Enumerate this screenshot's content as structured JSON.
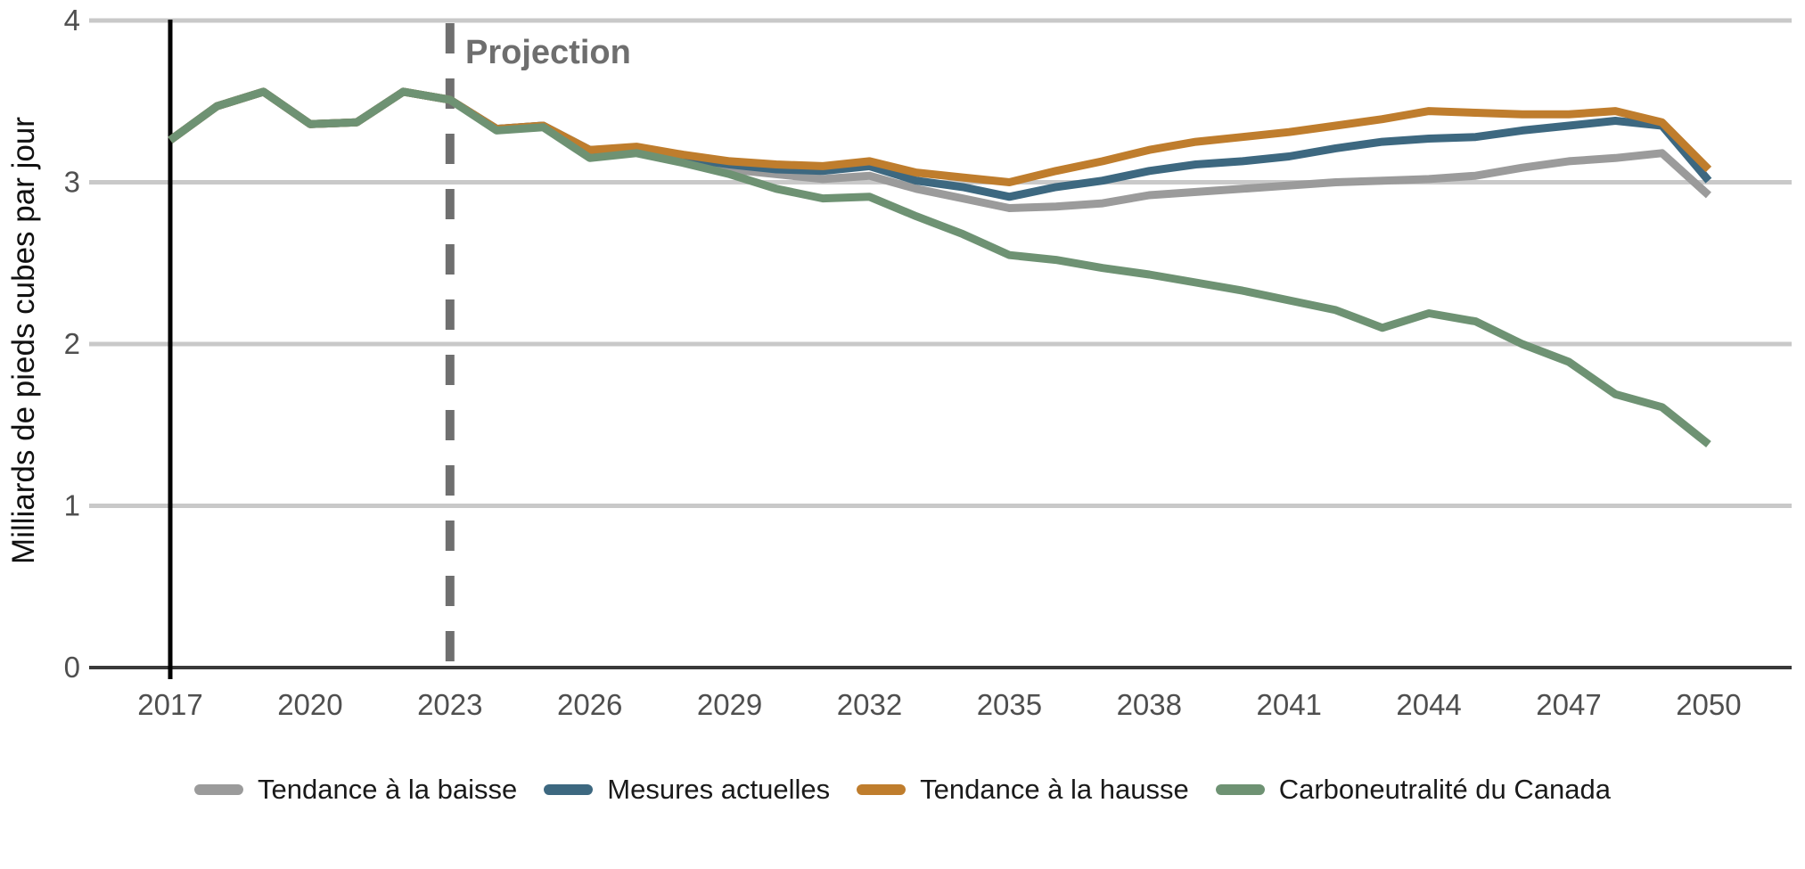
{
  "chart_data": {
    "type": "line",
    "title": "",
    "ylabel": "Milliards de pieds cubes par jour",
    "xlabel": "",
    "ylim": [
      0,
      4
    ],
    "yticks": [
      0,
      1,
      2,
      3,
      4
    ],
    "xticks": [
      2017,
      2020,
      2023,
      2026,
      2029,
      2032,
      2035,
      2038,
      2041,
      2044,
      2047,
      2050
    ],
    "x": [
      2017,
      2018,
      2019,
      2020,
      2021,
      2022,
      2023,
      2024,
      2025,
      2026,
      2027,
      2028,
      2029,
      2030,
      2031,
      2032,
      2033,
      2034,
      2035,
      2036,
      2037,
      2038,
      2039,
      2040,
      2041,
      2042,
      2043,
      2044,
      2045,
      2046,
      2047,
      2048,
      2049,
      2050
    ],
    "series": [
      {
        "name": "Tendance à la baisse",
        "color": "#9B9B9B",
        "values": [
          3.26,
          3.47,
          3.56,
          3.36,
          3.37,
          3.56,
          3.51,
          3.33,
          3.35,
          3.19,
          3.2,
          3.13,
          3.08,
          3.05,
          3.02,
          3.04,
          2.96,
          2.9,
          2.84,
          2.85,
          2.87,
          2.92,
          2.94,
          2.96,
          2.98,
          3.0,
          3.01,
          3.02,
          3.04,
          3.09,
          3.13,
          3.15,
          3.18,
          2.92
        ]
      },
      {
        "name": "Mesures actuelles",
        "color": "#3D6880",
        "values": [
          3.26,
          3.47,
          3.56,
          3.36,
          3.37,
          3.56,
          3.51,
          3.33,
          3.35,
          3.2,
          3.21,
          3.15,
          3.11,
          3.08,
          3.07,
          3.1,
          3.01,
          2.97,
          2.91,
          2.97,
          3.01,
          3.07,
          3.11,
          3.13,
          3.16,
          3.21,
          3.25,
          3.27,
          3.28,
          3.32,
          3.35,
          3.38,
          3.35,
          3.01
        ]
      },
      {
        "name": "Tendance à la hausse",
        "color": "#BF7D2D",
        "values": [
          3.26,
          3.47,
          3.56,
          3.36,
          3.37,
          3.56,
          3.51,
          3.33,
          3.35,
          3.2,
          3.22,
          3.17,
          3.13,
          3.11,
          3.1,
          3.13,
          3.06,
          3.03,
          3.0,
          3.07,
          3.13,
          3.2,
          3.25,
          3.28,
          3.31,
          3.35,
          3.39,
          3.44,
          3.43,
          3.42,
          3.42,
          3.44,
          3.37,
          3.08
        ]
      },
      {
        "name": "Carboneutralité du Canada",
        "color": "#6E9273",
        "values": [
          3.26,
          3.47,
          3.56,
          3.36,
          3.37,
          3.56,
          3.51,
          3.32,
          3.34,
          3.15,
          3.18,
          3.12,
          3.05,
          2.96,
          2.9,
          2.91,
          2.79,
          2.68,
          2.55,
          2.52,
          2.47,
          2.43,
          2.38,
          2.33,
          2.27,
          2.21,
          2.1,
          2.19,
          2.14,
          2.0,
          1.89,
          1.69,
          1.61,
          1.38
        ]
      }
    ],
    "annotations": {
      "projection_label": "Projection",
      "projection_line_x": 2023,
      "history_line_x": 2017
    },
    "grid": "horizontal",
    "legend_position": "bottom"
  },
  "colors": {
    "gridline": "#C9C9C9",
    "axis_line": "#3A3A3A",
    "tick_label": "#4F4F4F",
    "axis_title": "#111111",
    "history_line": "#000000",
    "projection_line": "#6F6F6F",
    "projection_label": "#6E6E6E",
    "legend_text": "#1A1A1A"
  }
}
